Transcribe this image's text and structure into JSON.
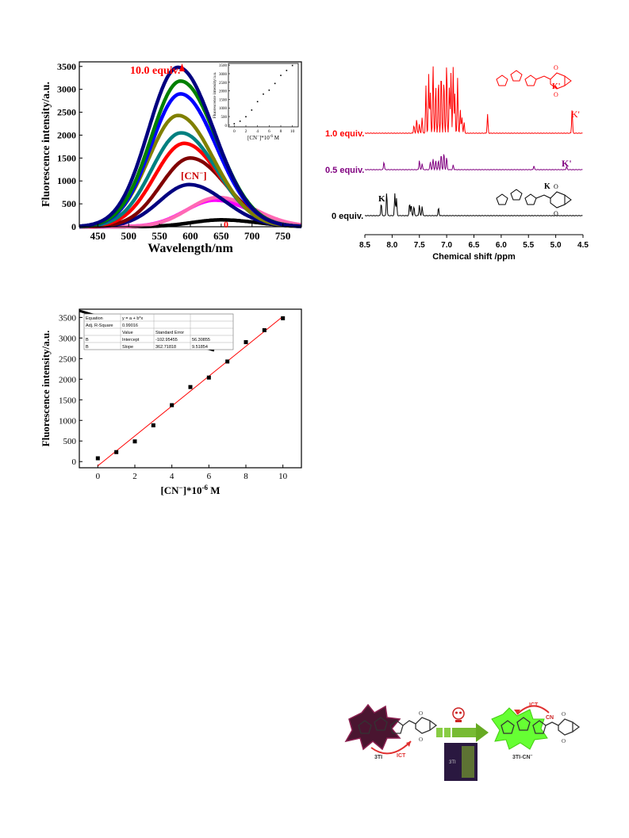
{
  "colors": {
    "red": "#ff0000",
    "purple": "#800080",
    "black": "#000000",
    "green_glow": "#66ff33",
    "maroon_burst": "#5a1a3a"
  },
  "chart_data": [
    {
      "type": "line",
      "panel": "fluorescence-spectra",
      "xlabel": "Wavelength/nm",
      "ylabel": "Fluorescence intensity/a.u.",
      "xlim": [
        420,
        780
      ],
      "ylim": [
        0,
        3600
      ],
      "xticks": [
        450,
        500,
        550,
        600,
        650,
        700,
        750
      ],
      "yticks": [
        0,
        500,
        1000,
        1500,
        2000,
        2500,
        3000,
        3500
      ],
      "annotations": {
        "top": "10.0 equiv.",
        "mid": "[CN]",
        "mid_sup": "−",
        "bottom": "0"
      },
      "series": [
        {
          "color": "#000000",
          "peak_x": 650,
          "peak_y": 150
        },
        {
          "color": "#ff00ff",
          "peak_x": 640,
          "peak_y": 580
        },
        {
          "color": "#ff69b4",
          "peak_x": 645,
          "peak_y": 640
        },
        {
          "color": "#000080",
          "peak_x": 598,
          "peak_y": 920
        },
        {
          "color": "#800000",
          "peak_x": 600,
          "peak_y": 1500
        },
        {
          "color": "#ff0000",
          "peak_x": 590,
          "peak_y": 1820
        },
        {
          "color": "#008080",
          "peak_x": 585,
          "peak_y": 2050
        },
        {
          "color": "#808000",
          "peak_x": 580,
          "peak_y": 2430
        },
        {
          "color": "#0000ff",
          "peak_x": 584,
          "peak_y": 2900
        },
        {
          "color": "#008000",
          "peak_x": 584,
          "peak_y": 3180
        },
        {
          "color": "#000080",
          "peak_x": 580,
          "peak_y": 3480
        }
      ],
      "inset": {
        "xlabel": "[CN]*10 M",
        "xlabel_sup1": "−",
        "xlabel_sup2": "-6",
        "ylabel": "Fluorescence intensity/a.u.",
        "xlim": [
          -1,
          11
        ],
        "ylim": [
          -100,
          3600
        ],
        "xticks": [
          0,
          2,
          4,
          6,
          8,
          10
        ],
        "yticks": [
          0,
          500,
          1000,
          1500,
          2000,
          2500,
          3000,
          3500
        ],
        "x": [
          0,
          1,
          2,
          3,
          4,
          5,
          6,
          7,
          8,
          9,
          10
        ],
        "y": [
          80,
          230,
          490,
          880,
          1370,
          1810,
          2040,
          2430,
          2900,
          3190,
          3480
        ]
      }
    },
    {
      "type": "line",
      "panel": "nmr-stack",
      "xlabel": "Chemical shift /ppm",
      "xlim": [
        8.5,
        4.5
      ],
      "xticks": [
        8.5,
        8.0,
        7.5,
        7.0,
        6.5,
        6.0,
        5.5,
        5.0,
        4.5
      ],
      "xtick_labels": [
        "8.5",
        "8.0",
        "7.5",
        "7.0",
        "6.5",
        "6.0",
        "5.5",
        "5.0",
        "4.5"
      ],
      "traces": [
        {
          "label": "1.0 equiv.",
          "color": "#ff0000",
          "peak_label": "K'"
        },
        {
          "label": "0.5 equiv.",
          "color": "#800080",
          "peak_label": "K'"
        },
        {
          "label": "0 equiv.",
          "color": "#000000",
          "peak_label": "K"
        }
      ],
      "structure_labels": {
        "k_prime": "K'",
        "k": "K"
      }
    },
    {
      "type": "scatter",
      "panel": "linear-fit",
      "xlabel": "[CN]*10 M",
      "xlabel_sup1": "−",
      "xlabel_sup2": "-6",
      "ylabel": "Fluorescence intensity/a.u.",
      "xlim": [
        -1,
        11
      ],
      "ylim": [
        -150,
        3700
      ],
      "xticks": [
        0,
        2,
        4,
        6,
        8,
        10
      ],
      "yticks": [
        0,
        500,
        1000,
        1500,
        2000,
        2500,
        3000,
        3500
      ],
      "x": [
        0,
        1,
        2,
        3,
        4,
        5,
        6,
        7,
        8,
        9,
        10
      ],
      "y": [
        80,
        230,
        490,
        880,
        1370,
        1810,
        2040,
        2430,
        2900,
        3190,
        3480
      ],
      "fit": {
        "intercept": -102.95455,
        "slope": 362.71818
      },
      "fit_table": {
        "rows": [
          [
            "Equation",
            "y = a + b*x",
            ""
          ],
          [
            "Adj. R-Square",
            "0.99016",
            ""
          ],
          [
            "",
            "Value",
            "Standard Error"
          ],
          [
            "B",
            "Intercept",
            "-102.95455",
            "56.30855"
          ],
          [
            "B",
            "Slope",
            "362.71818",
            "9.51854"
          ]
        ]
      }
    }
  ],
  "scheme": {
    "label_left": "3TI",
    "label_right": "3TI-CN",
    "label_right_sup": "−",
    "ict_left": "ICT",
    "ict_right": "ICT",
    "cn_label": "CN",
    "photo_label": "3TI"
  }
}
